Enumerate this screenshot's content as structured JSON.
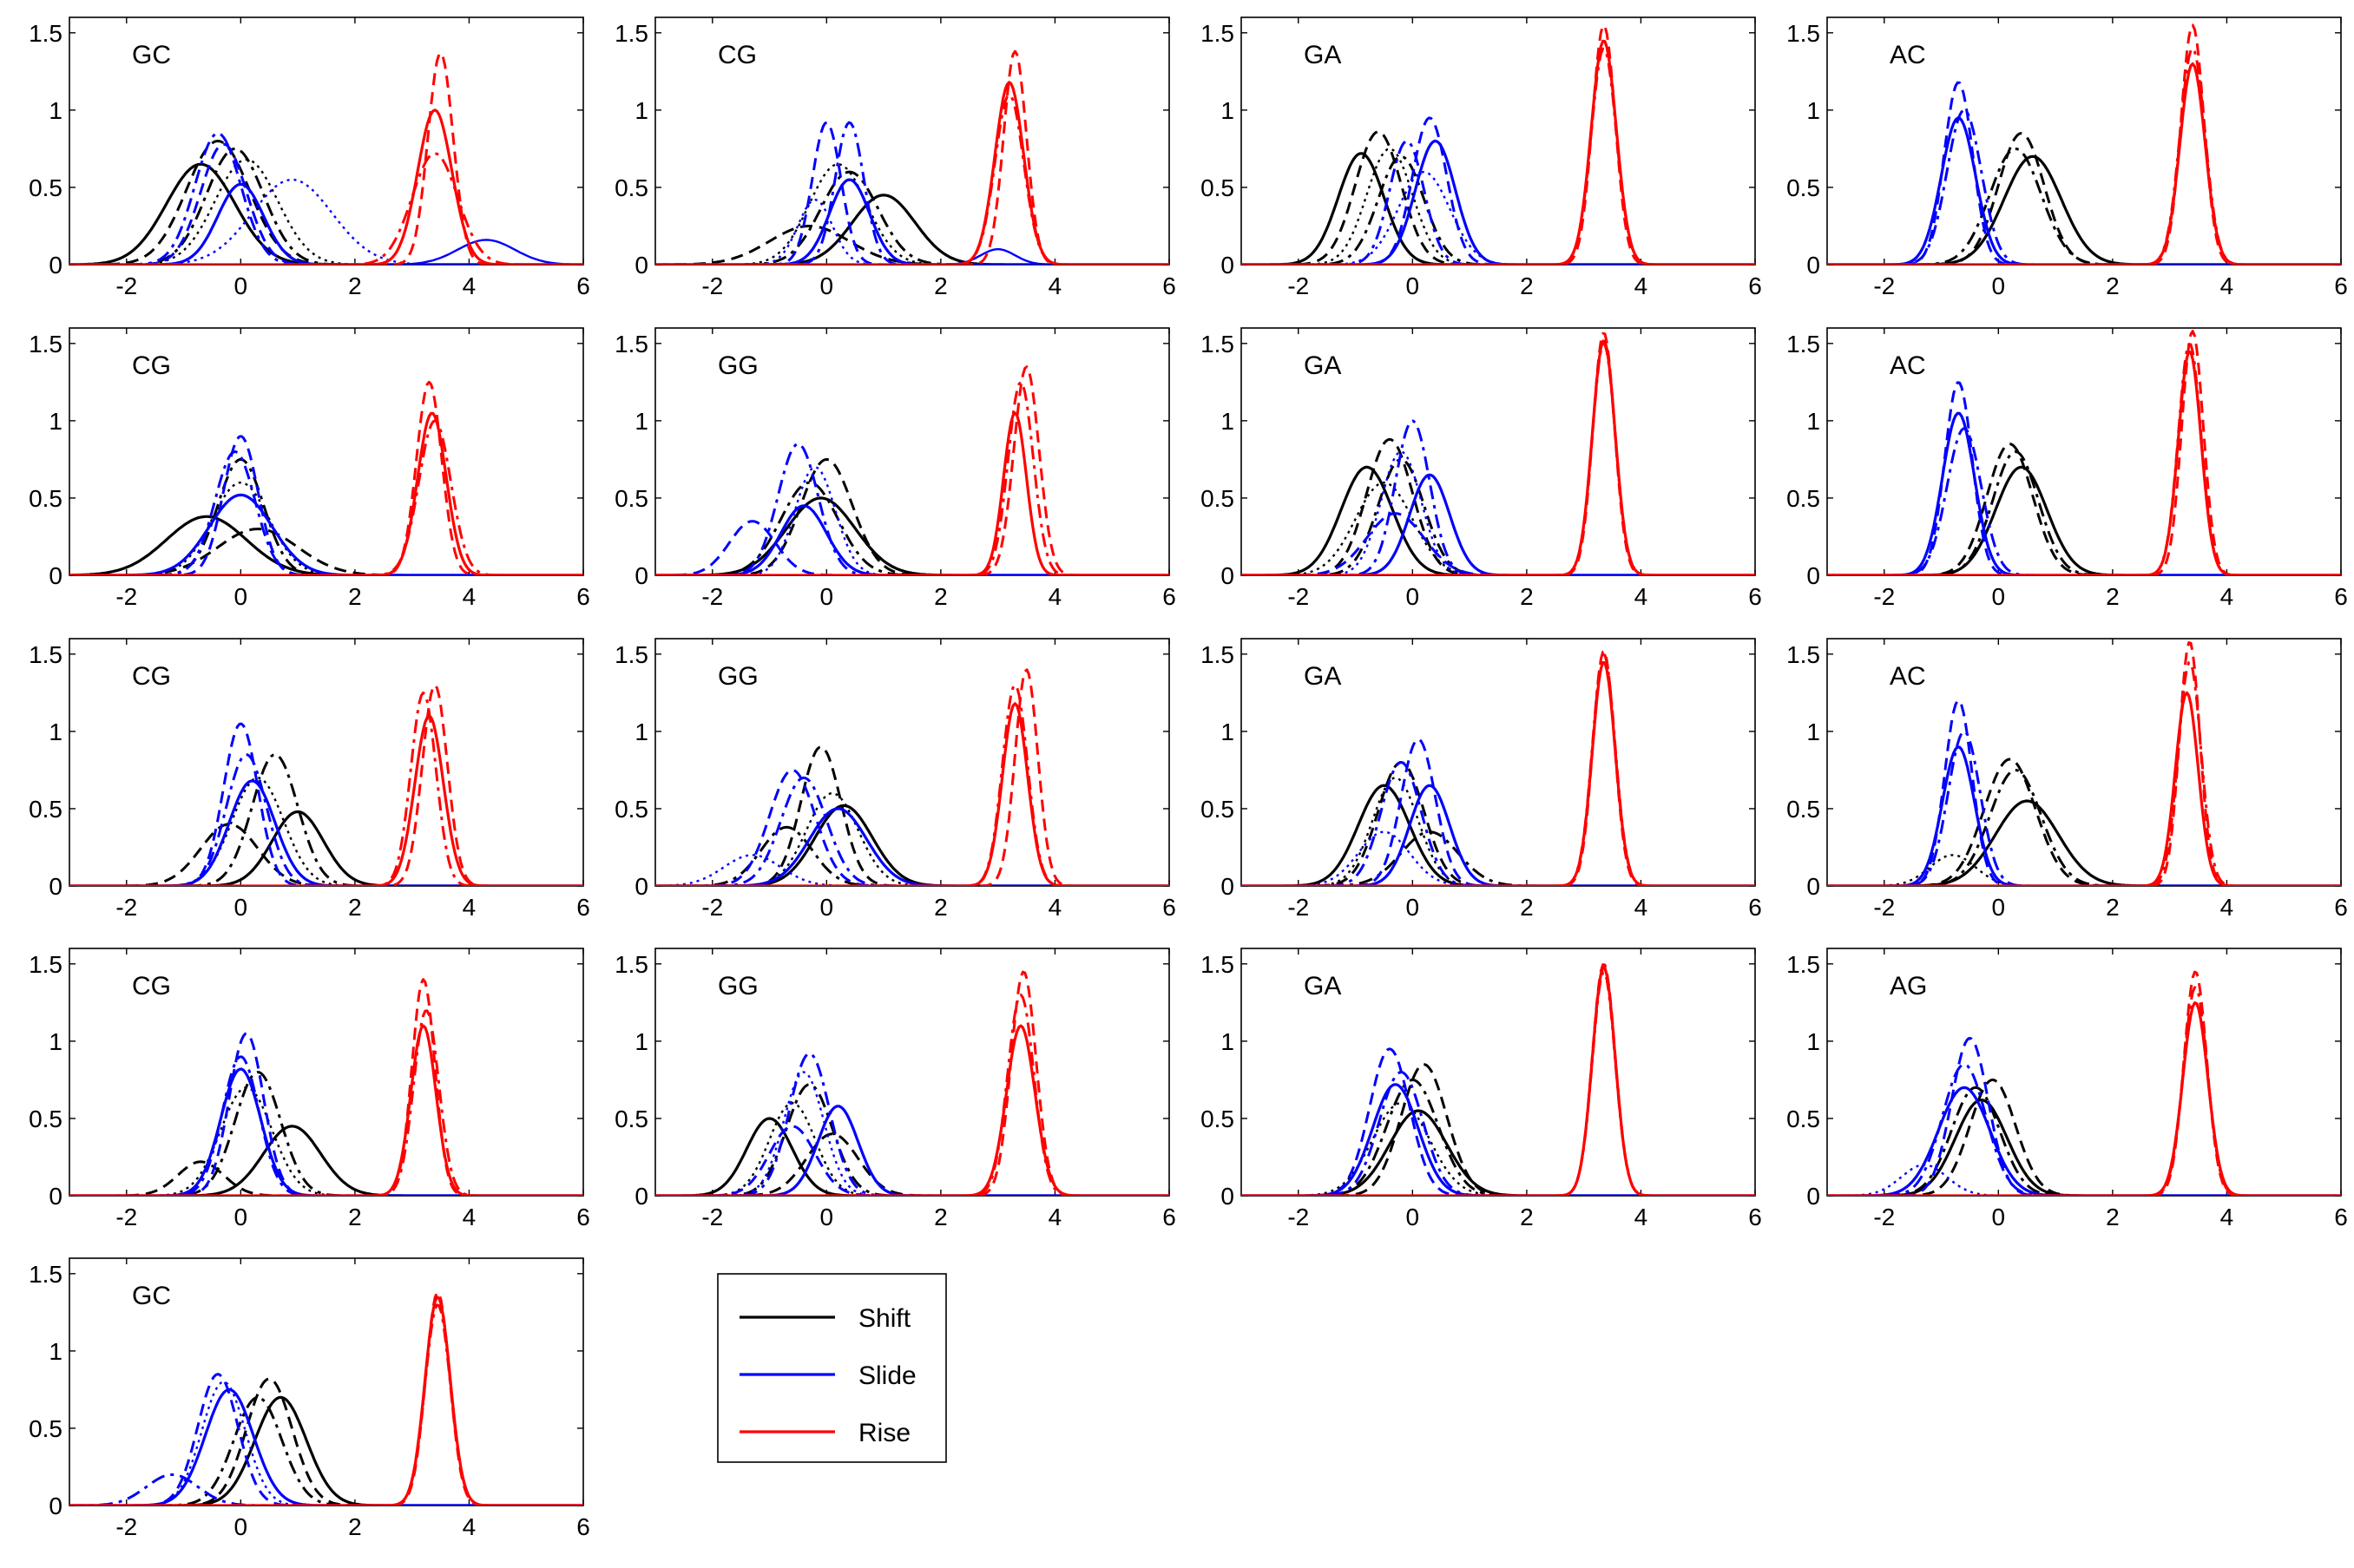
{
  "chart_data": {
    "type": "line",
    "subtitle": "",
    "xlim": [
      -3,
      6
    ],
    "ylim": [
      0,
      1.6
    ],
    "xticks": [
      "-2",
      "0",
      "2",
      "4",
      "6"
    ],
    "yticks": [
      "0",
      "0.5",
      "1",
      "1.5"
    ],
    "grid": false,
    "legend": {
      "placement": "below the middle-left panels",
      "entries": [
        {
          "label": "Shift",
          "color": "#000000"
        },
        {
          "label": "Slide",
          "color": "#0000ff"
        },
        {
          "label": "Rise",
          "color": "#ff0000"
        }
      ]
    },
    "colors": {
      "shift": "#000000",
      "slide": "#0000ff",
      "rise": "#ff0000"
    },
    "panels": [
      {
        "label": "GC",
        "shift": [
          [
            -0.7,
            0.65,
            0.6
          ],
          [
            -0.4,
            0.8,
            0.55
          ],
          [
            -0.1,
            0.75,
            0.5
          ],
          [
            0.1,
            0.68,
            0.55
          ]
        ],
        "slide": [
          [
            0.0,
            0.52,
            0.4
          ],
          [
            -0.3,
            0.78,
            0.4
          ],
          [
            -0.4,
            0.85,
            0.4
          ],
          [
            0.9,
            0.55,
            0.7
          ],
          [
            4.3,
            0.16,
            0.5
          ]
        ],
        "rise": [
          [
            3.4,
            1.0,
            0.3
          ],
          [
            3.5,
            1.37,
            0.22
          ],
          [
            3.4,
            0.72,
            0.4
          ]
        ]
      },
      {
        "label": "CG",
        "shift": [
          [
            1.0,
            0.45,
            0.55
          ],
          [
            -0.3,
            0.25,
            0.7
          ],
          [
            0.4,
            0.6,
            0.5
          ],
          [
            0.2,
            0.65,
            0.5
          ]
        ],
        "slide": [
          [
            0.4,
            0.55,
            0.35
          ],
          [
            0.0,
            0.92,
            0.25
          ],
          [
            0.4,
            0.92,
            0.25
          ],
          [
            -0.2,
            0.42,
            0.3
          ],
          [
            3.0,
            0.1,
            0.3
          ]
        ],
        "rise": [
          [
            3.2,
            1.18,
            0.25
          ],
          [
            3.3,
            1.38,
            0.2
          ],
          [
            3.2,
            1.1,
            0.25
          ]
        ]
      },
      {
        "label": "GA",
        "shift": [
          [
            -0.9,
            0.72,
            0.4
          ],
          [
            -0.6,
            0.86,
            0.4
          ],
          [
            -0.2,
            0.7,
            0.4
          ],
          [
            -0.4,
            0.75,
            0.4
          ]
        ],
        "slide": [
          [
            0.4,
            0.8,
            0.35
          ],
          [
            0.3,
            0.95,
            0.3
          ],
          [
            -0.1,
            0.8,
            0.3
          ],
          [
            0.2,
            0.6,
            0.45
          ]
        ],
        "rise": [
          [
            3.35,
            1.45,
            0.22
          ],
          [
            3.35,
            1.55,
            0.2
          ],
          [
            3.35,
            1.4,
            0.22
          ]
        ]
      },
      {
        "label": "AC",
        "shift": [
          [
            0.6,
            0.7,
            0.5
          ],
          [
            0.4,
            0.85,
            0.4
          ],
          [
            0.3,
            0.75,
            0.45
          ]
        ],
        "slide": [
          [
            -0.7,
            0.95,
            0.3
          ],
          [
            -0.7,
            1.18,
            0.25
          ],
          [
            -0.6,
            1.0,
            0.3
          ]
        ],
        "rise": [
          [
            3.4,
            1.3,
            0.22
          ],
          [
            3.4,
            1.55,
            0.2
          ],
          [
            3.4,
            1.4,
            0.22
          ]
        ]
      },
      {
        "label": "CG",
        "shift": [
          [
            -0.6,
            0.38,
            0.7
          ],
          [
            0.3,
            0.3,
            0.7
          ],
          [
            0.0,
            0.75,
            0.4
          ],
          [
            0.0,
            0.6,
            0.5
          ]
        ],
        "slide": [
          [
            0.0,
            0.52,
            0.55
          ],
          [
            0.0,
            0.9,
            0.3
          ],
          [
            -0.1,
            0.8,
            0.35
          ]
        ],
        "rise": [
          [
            3.35,
            1.05,
            0.25
          ],
          [
            3.3,
            1.25,
            0.22
          ],
          [
            3.4,
            1.0,
            0.28
          ]
        ]
      },
      {
        "label": "GG",
        "shift": [
          [
            -0.1,
            0.5,
            0.6
          ],
          [
            0.0,
            0.75,
            0.45
          ],
          [
            -0.3,
            0.6,
            0.5
          ]
        ],
        "slide": [
          [
            -0.4,
            0.45,
            0.4
          ],
          [
            -1.3,
            0.35,
            0.4
          ],
          [
            -0.5,
            0.85,
            0.35
          ],
          [
            -0.2,
            0.7,
            0.35
          ]
        ],
        "rise": [
          [
            3.3,
            1.05,
            0.2
          ],
          [
            3.5,
            1.35,
            0.22
          ],
          [
            3.4,
            1.25,
            0.22
          ]
        ]
      },
      {
        "label": "GA",
        "shift": [
          [
            -0.8,
            0.7,
            0.45
          ],
          [
            -0.4,
            0.88,
            0.4
          ],
          [
            -0.2,
            0.75,
            0.4
          ],
          [
            -0.5,
            0.6,
            0.5
          ]
        ],
        "slide": [
          [
            0.3,
            0.65,
            0.35
          ],
          [
            -0.3,
            0.4,
            0.5
          ],
          [
            0.0,
            1.0,
            0.3
          ],
          [
            -0.2,
            0.8,
            0.35
          ]
        ],
        "rise": [
          [
            3.35,
            1.52,
            0.2
          ],
          [
            3.35,
            1.57,
            0.19
          ],
          [
            3.35,
            1.5,
            0.2
          ]
        ]
      },
      {
        "label": "AC",
        "shift": [
          [
            0.4,
            0.7,
            0.45
          ],
          [
            0.2,
            0.85,
            0.4
          ],
          [
            0.3,
            0.8,
            0.4
          ]
        ],
        "slide": [
          [
            -0.7,
            1.05,
            0.28
          ],
          [
            -0.7,
            1.25,
            0.24
          ],
          [
            -0.6,
            0.95,
            0.3
          ]
        ],
        "rise": [
          [
            3.35,
            1.45,
            0.2
          ],
          [
            3.4,
            1.58,
            0.19
          ],
          [
            3.35,
            1.5,
            0.2
          ]
        ]
      },
      {
        "label": "CG",
        "shift": [
          [
            1.0,
            0.48,
            0.45
          ],
          [
            -0.2,
            0.4,
            0.5
          ],
          [
            0.6,
            0.85,
            0.4
          ],
          [
            0.3,
            0.7,
            0.45
          ]
        ],
        "slide": [
          [
            0.2,
            0.68,
            0.4
          ],
          [
            0.0,
            1.05,
            0.3
          ],
          [
            0.1,
            0.85,
            0.35
          ]
        ],
        "rise": [
          [
            3.3,
            1.1,
            0.25
          ],
          [
            3.4,
            1.3,
            0.22
          ],
          [
            3.2,
            1.25,
            0.22
          ]
        ]
      },
      {
        "label": "GG",
        "shift": [
          [
            0.3,
            0.52,
            0.5
          ],
          [
            -0.1,
            0.9,
            0.35
          ],
          [
            -0.7,
            0.38,
            0.45
          ],
          [
            0.1,
            0.6,
            0.45
          ]
        ],
        "slide": [
          [
            0.2,
            0.5,
            0.5
          ],
          [
            -0.6,
            0.75,
            0.4
          ],
          [
            -0.4,
            0.7,
            0.4
          ],
          [
            -1.3,
            0.2,
            0.5
          ]
        ],
        "rise": [
          [
            3.3,
            1.18,
            0.22
          ],
          [
            3.5,
            1.4,
            0.2
          ],
          [
            3.3,
            1.3,
            0.22
          ]
        ]
      },
      {
        "label": "GA",
        "shift": [
          [
            -0.5,
            0.65,
            0.45
          ],
          [
            -0.2,
            0.8,
            0.4
          ],
          [
            0.3,
            0.35,
            0.5
          ],
          [
            -0.3,
            0.7,
            0.4
          ]
        ],
        "slide": [
          [
            0.3,
            0.65,
            0.35
          ],
          [
            0.1,
            0.95,
            0.3
          ],
          [
            -0.2,
            0.8,
            0.35
          ],
          [
            -0.5,
            0.35,
            0.45
          ]
        ],
        "rise": [
          [
            3.35,
            1.45,
            0.2
          ],
          [
            3.35,
            1.52,
            0.19
          ],
          [
            3.35,
            1.5,
            0.2
          ]
        ]
      },
      {
        "label": "AC",
        "shift": [
          [
            0.5,
            0.55,
            0.55
          ],
          [
            0.2,
            0.82,
            0.45
          ],
          [
            0.3,
            0.75,
            0.45
          ],
          [
            -0.8,
            0.2,
            0.4
          ]
        ],
        "slide": [
          [
            -0.7,
            0.9,
            0.28
          ],
          [
            -0.7,
            1.2,
            0.24
          ],
          [
            -0.6,
            1.0,
            0.28
          ]
        ],
        "rise": [
          [
            3.3,
            1.25,
            0.2
          ],
          [
            3.35,
            1.58,
            0.18
          ],
          [
            3.35,
            1.45,
            0.2
          ]
        ]
      },
      {
        "label": "CG",
        "shift": [
          [
            0.9,
            0.45,
            0.5
          ],
          [
            -0.7,
            0.22,
            0.4
          ],
          [
            0.3,
            0.8,
            0.4
          ],
          [
            0.1,
            0.7,
            0.45
          ]
        ],
        "slide": [
          [
            0.0,
            0.82,
            0.35
          ],
          [
            0.1,
            1.05,
            0.3
          ],
          [
            0.0,
            0.9,
            0.32
          ]
        ],
        "rise": [
          [
            3.2,
            1.1,
            0.22
          ],
          [
            3.2,
            1.4,
            0.2
          ],
          [
            3.25,
            1.2,
            0.22
          ]
        ]
      },
      {
        "label": "GG",
        "shift": [
          [
            -1.0,
            0.5,
            0.4
          ],
          [
            0.1,
            0.4,
            0.45
          ],
          [
            -0.3,
            0.72,
            0.4
          ],
          [
            -0.6,
            0.6,
            0.4
          ]
        ],
        "slide": [
          [
            0.2,
            0.58,
            0.35
          ],
          [
            -0.6,
            0.45,
            0.4
          ],
          [
            -0.3,
            0.92,
            0.35
          ],
          [
            -0.4,
            0.8,
            0.35
          ]
        ],
        "rise": [
          [
            3.4,
            1.1,
            0.25
          ],
          [
            3.45,
            1.45,
            0.22
          ],
          [
            3.4,
            1.3,
            0.23
          ]
        ]
      },
      {
        "label": "GA",
        "shift": [
          [
            0.1,
            0.55,
            0.5
          ],
          [
            0.2,
            0.85,
            0.4
          ],
          [
            0.0,
            0.75,
            0.45
          ],
          [
            -0.2,
            0.6,
            0.5
          ]
        ],
        "slide": [
          [
            -0.3,
            0.72,
            0.4
          ],
          [
            -0.4,
            0.95,
            0.35
          ],
          [
            -0.2,
            0.8,
            0.38
          ]
        ],
        "rise": [
          [
            3.35,
            1.48,
            0.2
          ],
          [
            3.35,
            1.5,
            0.2
          ],
          [
            3.35,
            1.45,
            0.2
          ]
        ]
      },
      {
        "label": "AG",
        "shift": [
          [
            -0.3,
            0.62,
            0.45
          ],
          [
            -0.1,
            0.75,
            0.4
          ],
          [
            -0.4,
            0.7,
            0.42
          ]
        ],
        "slide": [
          [
            -0.6,
            0.7,
            0.45
          ],
          [
            -0.5,
            1.02,
            0.32
          ],
          [
            -0.6,
            0.85,
            0.38
          ],
          [
            -1.3,
            0.2,
            0.4
          ]
        ],
        "rise": [
          [
            3.45,
            1.25,
            0.22
          ],
          [
            3.45,
            1.45,
            0.2
          ],
          [
            3.45,
            1.35,
            0.21
          ]
        ]
      },
      {
        "label": "GC",
        "shift": [
          [
            0.7,
            0.7,
            0.45
          ],
          [
            0.5,
            0.82,
            0.4
          ],
          [
            0.3,
            0.7,
            0.42
          ]
        ],
        "slide": [
          [
            -0.2,
            0.75,
            0.42
          ],
          [
            -0.4,
            0.85,
            0.35
          ],
          [
            -1.2,
            0.2,
            0.45
          ],
          [
            -0.3,
            0.8,
            0.38
          ]
        ],
        "rise": [
          [
            3.45,
            1.35,
            0.22
          ],
          [
            3.45,
            1.38,
            0.21
          ],
          [
            3.45,
            1.3,
            0.22
          ]
        ]
      }
    ]
  }
}
